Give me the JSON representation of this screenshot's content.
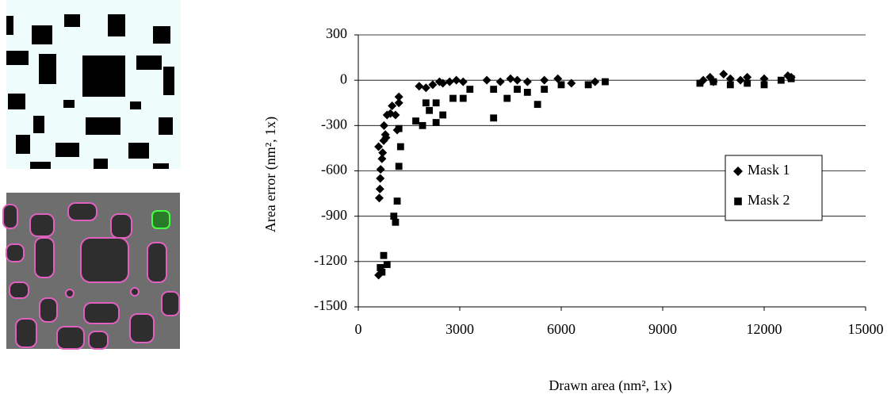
{
  "chart_data": {
    "type": "scatter",
    "x_label": "Drawn area (nm², 1x)",
    "y_label": "Area error (nm², 1x)",
    "xlim": [
      0,
      15000
    ],
    "xticks": [
      0,
      3000,
      6000,
      9000,
      12000,
      15000
    ],
    "ylim": [
      -1500,
      300
    ],
    "yticks": [
      300,
      0,
      -300,
      -600,
      -900,
      -1200,
      -1500
    ],
    "grid": true,
    "legend": "right",
    "series": [
      {
        "name": "Mask 1",
        "color": "#000000",
        "marker": "diamond",
        "x": [
          600,
          620,
          640,
          650,
          660,
          600,
          700,
          720,
          750,
          760,
          800,
          820,
          850,
          950,
          1000,
          1100,
          1150,
          1200,
          1200,
          1800,
          2000,
          2200,
          2400,
          2500,
          2700,
          2900,
          3100,
          3800,
          4200,
          4500,
          4700,
          5000,
          5500,
          5900,
          6300,
          7000,
          10200,
          10400,
          10800,
          11000,
          11500,
          12000,
          12700,
          12800,
          10500,
          11300
        ],
        "values": [
          -1290,
          -780,
          -720,
          -650,
          -590,
          -440,
          -520,
          -480,
          -400,
          -300,
          -360,
          -380,
          -230,
          -220,
          -170,
          -230,
          -330,
          -110,
          -150,
          -40,
          -50,
          -30,
          -10,
          -20,
          -10,
          0,
          -10,
          0,
          -10,
          10,
          0,
          -10,
          0,
          10,
          -20,
          -10,
          0,
          20,
          40,
          10,
          20,
          10,
          30,
          20,
          -10,
          0
        ]
      },
      {
        "name": "Mask 2",
        "color": "#000000",
        "marker": "square",
        "x": [
          700,
          650,
          750,
          850,
          1050,
          1100,
          1150,
          1200,
          1250,
          1200,
          1700,
          1900,
          2000,
          2100,
          2300,
          2300,
          2500,
          2800,
          3100,
          3300,
          4000,
          4000,
          4400,
          4700,
          5000,
          5300,
          5500,
          6000,
          6800,
          7300,
          10100,
          10500,
          11000,
          11500,
          12000,
          12500,
          12800
        ],
        "values": [
          -1270,
          -1240,
          -1160,
          -1220,
          -900,
          -940,
          -800,
          -570,
          -440,
          -320,
          -270,
          -300,
          -150,
          -200,
          -280,
          -150,
          -230,
          -120,
          -120,
          -60,
          -250,
          -60,
          -120,
          -60,
          -80,
          -160,
          -60,
          -30,
          -30,
          -10,
          -20,
          -10,
          -30,
          -20,
          -30,
          0,
          10
        ]
      }
    ]
  }
}
